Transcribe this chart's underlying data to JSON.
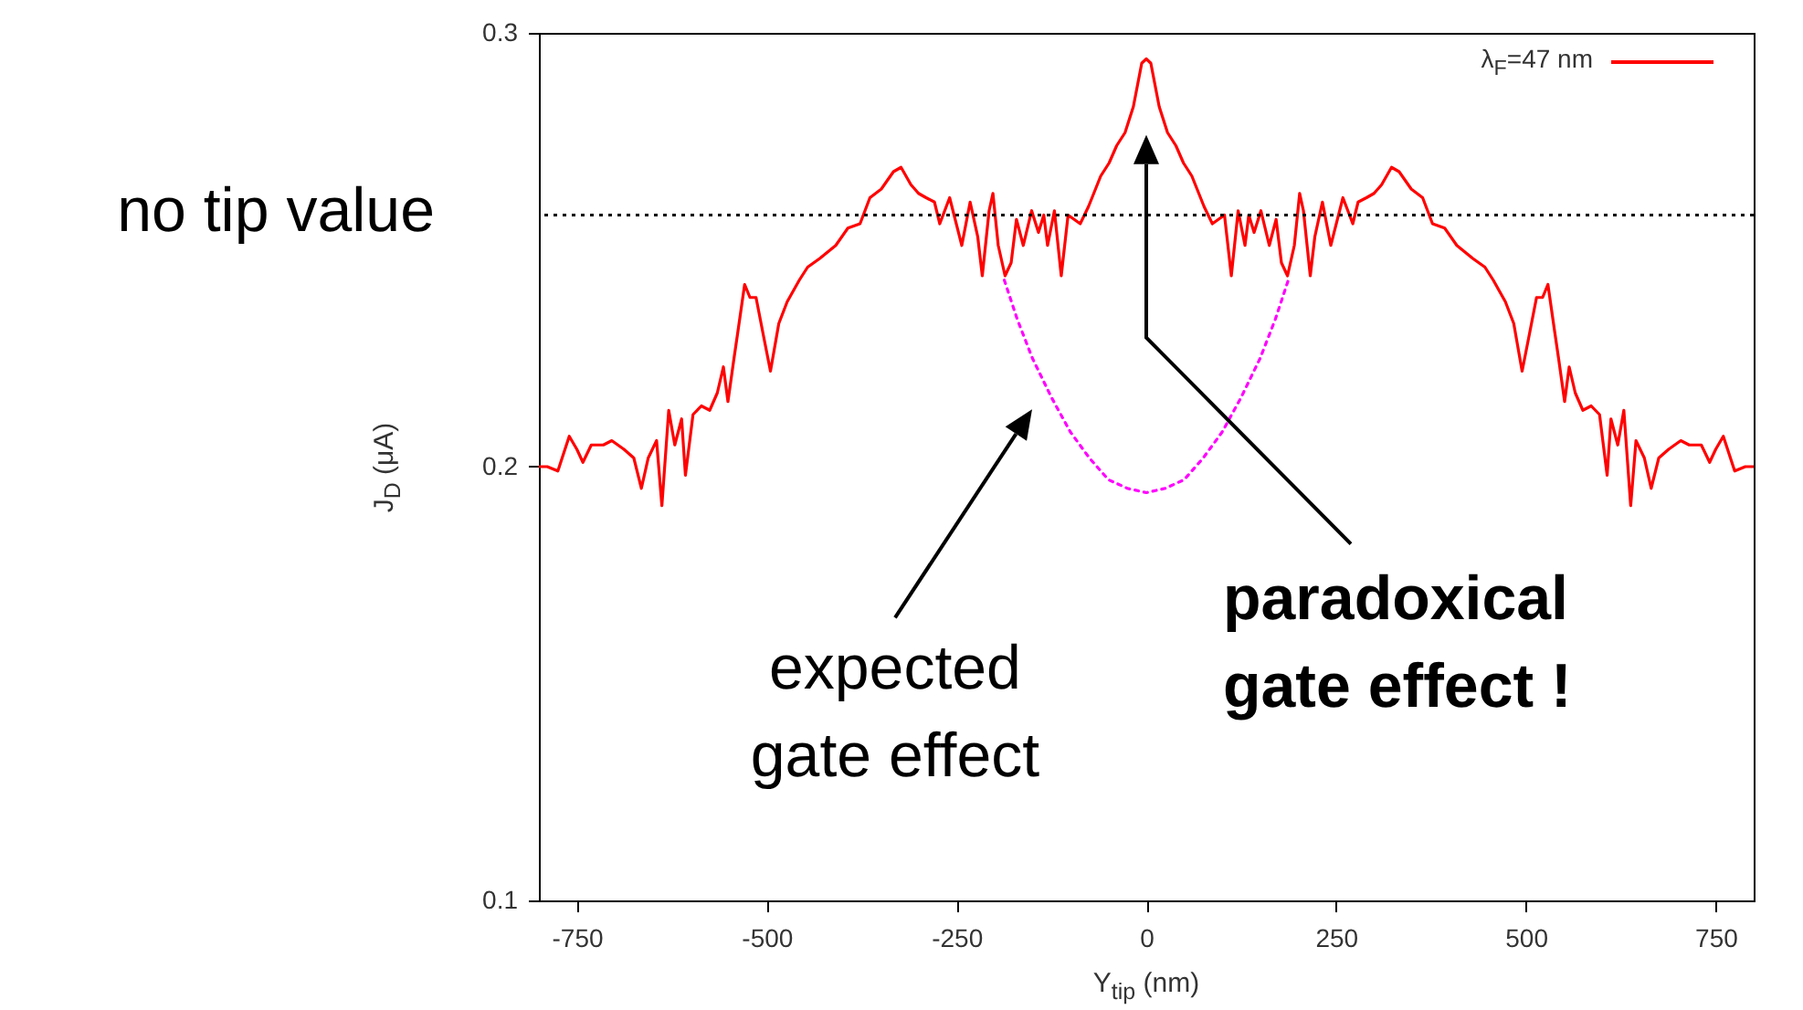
{
  "chart_data": {
    "type": "line",
    "xlabel": "Y$_{tip}$ (nm)",
    "ylabel": "J$_{D}$ (μA)",
    "xlim": [
      -800,
      800
    ],
    "ylim": [
      0.1,
      0.3
    ],
    "xticks": [
      -750,
      -500,
      -250,
      0,
      250,
      500,
      750
    ],
    "yticks": [
      0.1,
      0.2,
      0.3
    ],
    "grid": false,
    "legend": "top right",
    "marker": "none",
    "series": [
      {
        "name": "λ$_{F}$=47 nm",
        "color": "#ff0000",
        "line_style": "solid",
        "x": [
          -800,
          -789,
          -775,
          -760,
          -750,
          -742,
          -731,
          -715,
          -704,
          -688,
          -675,
          -665,
          -656,
          -645,
          -638,
          -629,
          -621,
          -612,
          -607,
          -597,
          -586,
          -575,
          -565,
          -557,
          -551,
          -543,
          -538,
          -529,
          -522,
          -514,
          -504,
          -495,
          -484,
          -473,
          -457,
          -446,
          -430,
          -409,
          -393,
          -377,
          -364,
          -349,
          -333,
          -323,
          -310,
          -300,
          -290,
          -279,
          -272,
          -259,
          -243,
          -232,
          -222,
          -216,
          -207,
          -202,
          -195,
          -186,
          -178,
          -171,
          -162,
          -151,
          -142,
          -135,
          -130,
          -121,
          -112,
          -103,
          -95,
          -87,
          -76,
          -60,
          -49,
          -39,
          -28,
          -17,
          -6,
          0,
          6,
          17,
          28,
          39,
          49,
          60,
          76,
          87,
          95,
          103,
          112,
          121,
          130,
          135,
          142,
          151,
          162,
          171,
          178,
          186,
          195,
          202,
          207,
          216,
          222,
          232,
          243,
          259,
          272,
          279,
          290,
          300,
          310,
          323,
          333,
          349,
          364,
          377,
          393,
          409,
          430,
          446,
          457,
          473,
          484,
          495,
          504,
          514,
          522,
          529,
          538,
          543,
          551,
          557,
          565,
          575,
          586,
          597,
          607,
          612,
          621,
          629,
          638,
          645,
          656,
          665,
          675,
          688,
          704,
          715,
          731,
          742,
          750,
          760,
          775,
          789,
          800
        ],
        "values": [
          0.2,
          0.2,
          0.199,
          0.207,
          0.204,
          0.201,
          0.205,
          0.205,
          0.206,
          0.204,
          0.202,
          0.195,
          0.202,
          0.206,
          0.191,
          0.213,
          0.205,
          0.211,
          0.198,
          0.212,
          0.214,
          0.213,
          0.217,
          0.223,
          0.215,
          0.225,
          0.231,
          0.242,
          0.239,
          0.239,
          0.23,
          0.222,
          0.233,
          0.238,
          0.243,
          0.246,
          0.248,
          0.251,
          0.255,
          0.256,
          0.262,
          0.264,
          0.268,
          0.269,
          0.265,
          0.263,
          0.262,
          0.261,
          0.256,
          0.262,
          0.251,
          0.261,
          0.253,
          0.244,
          0.259,
          0.263,
          0.251,
          0.244,
          0.247,
          0.257,
          0.251,
          0.259,
          0.254,
          0.258,
          0.251,
          0.259,
          0.244,
          0.258,
          0.257,
          0.256,
          0.26,
          0.267,
          0.27,
          0.274,
          0.277,
          0.283,
          0.293,
          0.294,
          0.293,
          0.283,
          0.277,
          0.274,
          0.27,
          0.267,
          0.26,
          0.256,
          0.257,
          0.258,
          0.244,
          0.259,
          0.251,
          0.258,
          0.254,
          0.259,
          0.251,
          0.257,
          0.247,
          0.244,
          0.251,
          0.263,
          0.259,
          0.244,
          0.253,
          0.261,
          0.251,
          0.262,
          0.256,
          0.261,
          0.262,
          0.263,
          0.265,
          0.269,
          0.268,
          0.264,
          0.262,
          0.256,
          0.255,
          0.251,
          0.248,
          0.246,
          0.243,
          0.238,
          0.233,
          0.222,
          0.23,
          0.239,
          0.239,
          0.242,
          0.231,
          0.225,
          0.215,
          0.223,
          0.217,
          0.213,
          0.214,
          0.212,
          0.198,
          0.211,
          0.205,
          0.213,
          0.191,
          0.206,
          0.202,
          0.195,
          0.202,
          0.204,
          0.206,
          0.205,
          0.205,
          0.201,
          0.204,
          0.207,
          0.199,
          0.2,
          0.2
        ]
      },
      {
        "color": "#ff00ff",
        "line_style": "dotted",
        "x": [
          -187,
          -170,
          -150,
          -125,
          -100,
          -75,
          -50,
          -25,
          0,
          25,
          50,
          75,
          100,
          125,
          150,
          170,
          187
        ],
        "values": [
          0.243,
          0.234,
          0.225,
          0.216,
          0.208,
          0.202,
          0.197,
          0.195,
          0.194,
          0.195,
          0.197,
          0.202,
          0.208,
          0.216,
          0.225,
          0.234,
          0.243
        ]
      }
    ],
    "ref_lines": [
      {
        "axis": "y",
        "value": 0.258,
        "label": "no tip value",
        "color": "#000000",
        "line_style": "dotted"
      }
    ],
    "annotations": [
      "expected\ngate effect",
      "paradoxical\ngate effect !"
    ]
  }
}
